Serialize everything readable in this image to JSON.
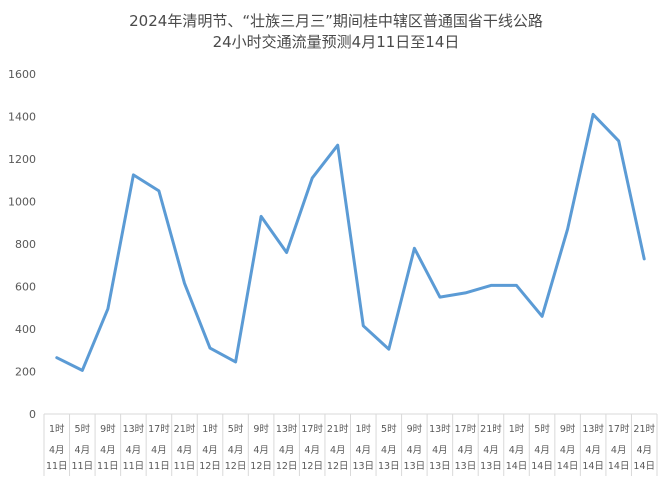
{
  "chart_data": {
    "type": "line",
    "title_lines": [
      "2024年清明节、“壮族三月三”期间桂中辖区普通国省干线公路",
      "24小时交通流量预测4月11日至14日"
    ],
    "xlabel": "",
    "ylabel": "",
    "ylim": [
      0,
      1600
    ],
    "yticks": [
      0,
      200,
      400,
      600,
      800,
      1000,
      1200,
      1400,
      1600
    ],
    "grid": false,
    "legend": "none",
    "line_color": "#5B9BD5",
    "categories": [
      {
        "hour": "1时",
        "month": "4月",
        "day": "11日"
      },
      {
        "hour": "5时",
        "month": "4月",
        "day": "11日"
      },
      {
        "hour": "9时",
        "month": "4月",
        "day": "11日"
      },
      {
        "hour": "13时",
        "month": "4月",
        "day": "11日"
      },
      {
        "hour": "17时",
        "month": "4月",
        "day": "11日"
      },
      {
        "hour": "21时",
        "month": "4月",
        "day": "11日"
      },
      {
        "hour": "1时",
        "month": "4月",
        "day": "12日"
      },
      {
        "hour": "5时",
        "month": "4月",
        "day": "12日"
      },
      {
        "hour": "9时",
        "month": "4月",
        "day": "12日"
      },
      {
        "hour": "13时",
        "month": "4月",
        "day": "12日"
      },
      {
        "hour": "17时",
        "month": "4月",
        "day": "12日"
      },
      {
        "hour": "21时",
        "month": "4月",
        "day": "12日"
      },
      {
        "hour": "1时",
        "month": "4月",
        "day": "13日"
      },
      {
        "hour": "5时",
        "month": "4月",
        "day": "13日"
      },
      {
        "hour": "9时",
        "month": "4月",
        "day": "13日"
      },
      {
        "hour": "13时",
        "month": "4月",
        "day": "13日"
      },
      {
        "hour": "17时",
        "month": "4月",
        "day": "13日"
      },
      {
        "hour": "21时",
        "month": "4月",
        "day": "13日"
      },
      {
        "hour": "1时",
        "month": "4月",
        "day": "14日"
      },
      {
        "hour": "5时",
        "month": "4月",
        "day": "14日"
      },
      {
        "hour": "9时",
        "month": "4月",
        "day": "14日"
      },
      {
        "hour": "13时",
        "month": "4月",
        "day": "14日"
      },
      {
        "hour": "17时",
        "month": "4月",
        "day": "14日"
      },
      {
        "hour": "21时",
        "month": "4月",
        "day": "14日"
      }
    ],
    "series": [
      {
        "values": [
          265,
          205,
          495,
          1125,
          1050,
          615,
          310,
          245,
          930,
          760,
          1110,
          1265,
          415,
          305,
          780,
          550,
          570,
          605,
          605,
          460,
          870,
          1410,
          1285,
          730
        ]
      }
    ]
  }
}
